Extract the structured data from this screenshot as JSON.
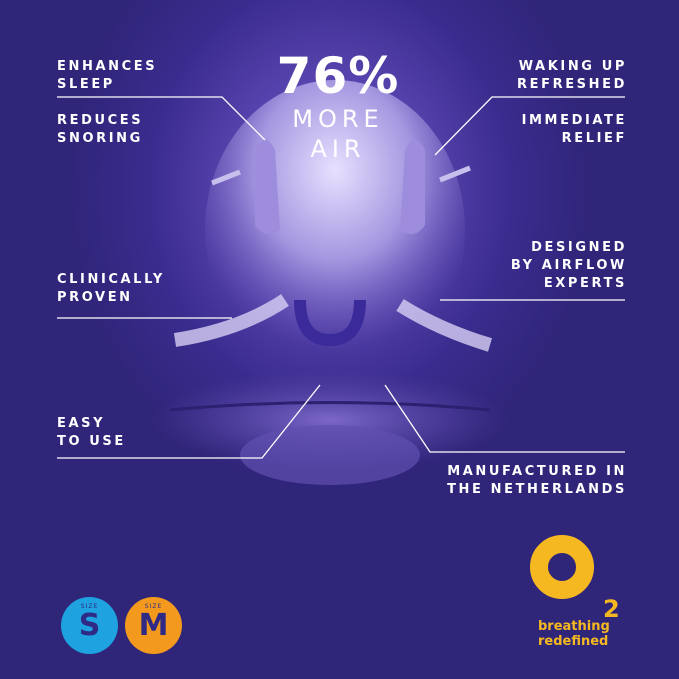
{
  "hero": {
    "percent": "76%",
    "line1": "MORE",
    "line2": "AIR"
  },
  "benefits_left": [
    "ENHANCES\nSLEEP",
    "REDUCES\nSNORING",
    "CLINICALLY\nPROVEN",
    "EASY\nTO USE"
  ],
  "benefits_right": [
    "WAKING UP\nREFRESHED",
    "IMMEDIATE\nRELIEF",
    "DESIGNED\nBY AIRFLOW\nEXPERTS",
    "MANUFACTURED IN\nTHE NETHERLANDS"
  ],
  "sizes": [
    {
      "caption": "SIZE",
      "letter": "S",
      "color": "#1fa3e0"
    },
    {
      "caption": "SIZE",
      "letter": "M",
      "color": "#f39a1e"
    }
  ],
  "brand": {
    "logo_text": "O2",
    "subscript": "2",
    "tagline": "breathing\nredefined",
    "color": "#f6b820"
  }
}
